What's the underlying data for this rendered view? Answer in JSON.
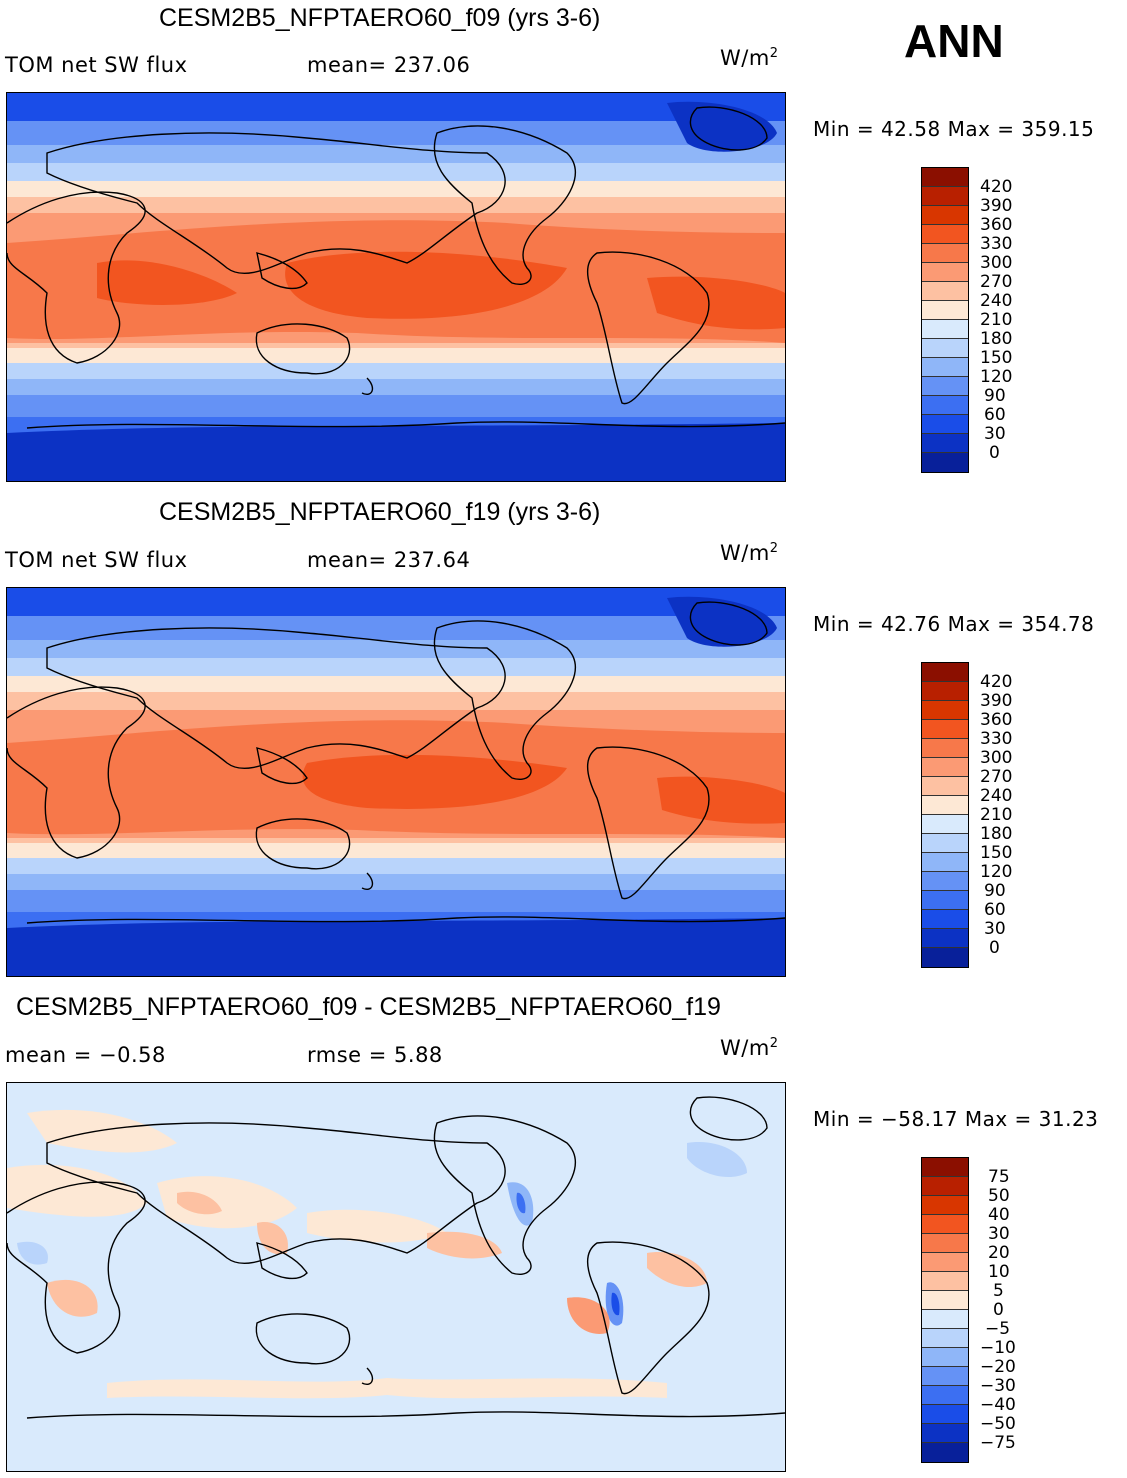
{
  "header": {
    "season": "ANN"
  },
  "panels": [
    {
      "title": "CESM2B5_NFPTAERO60_f09 (yrs 3-6)",
      "left_label": "TOM net SW flux",
      "stat_label": "mean= 237.06",
      "units": "W/m",
      "units_exp": "2",
      "minmax": "Min =  42.58 Max = 359.15",
      "colorbar": {
        "labels": [
          "420",
          "390",
          "360",
          "330",
          "300",
          "270",
          "240",
          "210",
          "180",
          "150",
          "120",
          "90",
          "60",
          "30",
          "0"
        ],
        "colors": [
          "#8b0f00",
          "#b82000",
          "#d83600",
          "#f25520",
          "#f7784a",
          "#fb9a74",
          "#fdc1a2",
          "#fde8d5",
          "#d9eafc",
          "#b9d4fb",
          "#8fb6f8",
          "#6592f5",
          "#3c6ff2",
          "#1a4de8",
          "#0c32c4",
          "#08209a"
        ]
      },
      "map_palette": {
        "pole": "#0c32c4",
        "high": "#1a4de8",
        "mid": "#3c6ff2",
        "low": "#6592f5",
        "sub": "#8fb6f8",
        "cool": "#b9d4fb",
        "pale": "#d9eafc",
        "cream": "#fde8d5",
        "light_orange": "#fdc1a2",
        "orange": "#fb9a74",
        "warm": "#f7784a",
        "hot": "#f25520"
      }
    },
    {
      "title": "CESM2B5_NFPTAERO60_f19 (yrs 3-6)",
      "left_label": "TOM net SW flux",
      "stat_label": "mean= 237.64",
      "units": "W/m",
      "units_exp": "2",
      "minmax": "Min =  42.76 Max = 354.78",
      "colorbar": {
        "labels": [
          "420",
          "390",
          "360",
          "330",
          "300",
          "270",
          "240",
          "210",
          "180",
          "150",
          "120",
          "90",
          "60",
          "30",
          "0"
        ],
        "colors": [
          "#8b0f00",
          "#b82000",
          "#d83600",
          "#f25520",
          "#f7784a",
          "#fb9a74",
          "#fdc1a2",
          "#fde8d5",
          "#d9eafc",
          "#b9d4fb",
          "#8fb6f8",
          "#6592f5",
          "#3c6ff2",
          "#1a4de8",
          "#0c32c4",
          "#08209a"
        ]
      }
    },
    {
      "title": "CESM2B5_NFPTAERO60_f09 - CESM2B5_NFPTAERO60_f19",
      "left_label": "mean =   −0.58",
      "stat_label": "rmse =    5.88",
      "units": "W/m",
      "units_exp": "2",
      "minmax": "Min = −58.17 Max =   31.23",
      "colorbar": {
        "labels": [
          "75",
          "50",
          "40",
          "30",
          "20",
          "10",
          "5",
          "0",
          "−5",
          "−10",
          "−20",
          "−30",
          "−40",
          "−50",
          "−75"
        ],
        "colors": [
          "#8b0f00",
          "#b82000",
          "#d83600",
          "#f25520",
          "#f7784a",
          "#fb9a74",
          "#fdc1a2",
          "#fde8d5",
          "#d9eafc",
          "#b9d4fb",
          "#8fb6f8",
          "#6592f5",
          "#3c6ff2",
          "#1a4de8",
          "#0c32c4",
          "#08209a"
        ]
      }
    }
  ]
}
